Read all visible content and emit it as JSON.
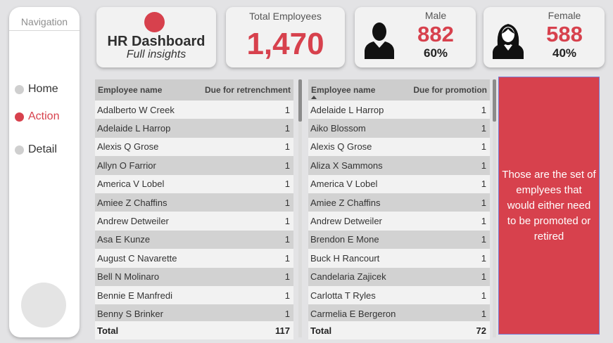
{
  "navigation": {
    "title": "Navigation",
    "items": [
      {
        "label": "Home",
        "active": false
      },
      {
        "label": "Action",
        "active": true
      },
      {
        "label": "Detail",
        "active": false
      }
    ]
  },
  "header": {
    "title": "HR Dashboard",
    "subtitle": "Full insights"
  },
  "kpis": {
    "total": {
      "label": "Total Employees",
      "value": "1,470"
    },
    "male": {
      "label": "Male",
      "value": "882",
      "percent": "60%",
      "icon": "male-user-icon"
    },
    "female": {
      "label": "Female",
      "value": "588",
      "percent": "40%",
      "icon": "female-user-icon"
    }
  },
  "retrenchment_table": {
    "headers": {
      "name": "Employee name",
      "value": "Due for retrenchment"
    },
    "rows": [
      {
        "name": "Adalberto W Creek",
        "value": "1"
      },
      {
        "name": "Adelaide L Harrop",
        "value": "1"
      },
      {
        "name": "Alexis Q Grose",
        "value": "1"
      },
      {
        "name": "Allyn O Farrior",
        "value": "1"
      },
      {
        "name": "America V Lobel",
        "value": "1"
      },
      {
        "name": "Amiee Z Chaffins",
        "value": "1"
      },
      {
        "name": "Andrew Detweiler",
        "value": "1"
      },
      {
        "name": "Asa E Kunze",
        "value": "1"
      },
      {
        "name": "August C Navarette",
        "value": "1"
      },
      {
        "name": "Bell N Molinaro",
        "value": "1"
      },
      {
        "name": "Bennie E Manfredi",
        "value": "1"
      },
      {
        "name": "Benny S Brinker",
        "value": "1"
      }
    ],
    "total": {
      "label": "Total",
      "value": "117"
    }
  },
  "promotion_table": {
    "headers": {
      "name": "Employee name",
      "value": "Due for promotion"
    },
    "rows": [
      {
        "name": "Adelaide L Harrop",
        "value": "1"
      },
      {
        "name": "Aiko Blossom",
        "value": "1"
      },
      {
        "name": "Alexis Q Grose",
        "value": "1"
      },
      {
        "name": "Aliza X Sammons",
        "value": "1"
      },
      {
        "name": "America V Lobel",
        "value": "1"
      },
      {
        "name": "Amiee Z Chaffins",
        "value": "1"
      },
      {
        "name": "Andrew Detweiler",
        "value": "1"
      },
      {
        "name": "Brendon E Mone",
        "value": "1"
      },
      {
        "name": "Buck H Rancourt",
        "value": "1"
      },
      {
        "name": "Candelaria Zajicek",
        "value": "1"
      },
      {
        "name": "Carlotta T Ryles",
        "value": "1"
      },
      {
        "name": "Carmelia E Bergeron",
        "value": "1"
      }
    ],
    "total": {
      "label": "Total",
      "value": "72"
    }
  },
  "note": {
    "text": "Those are the set of emplyees that would either need to be promoted or retired"
  },
  "colors": {
    "accent": "#d7414d",
    "background": "#e3e3e5"
  }
}
